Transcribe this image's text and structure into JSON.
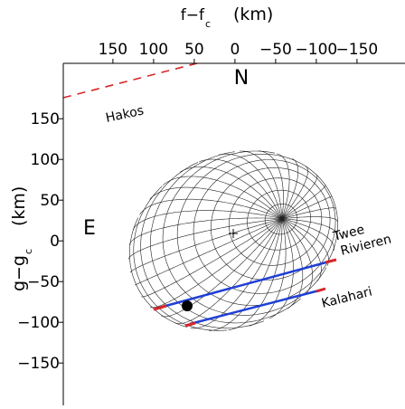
{
  "chart_data": {
    "type": "occultation",
    "title": "f−f",
    "title_sub": "c",
    "title_unit": "(km)",
    "ylabel": "g−g",
    "ylabel_sub": "c",
    "ylabel_unit": "(km)",
    "xlim": [
      211,
      -209
    ],
    "ylim": [
      -202,
      218
    ],
    "xticks": [
      150,
      100,
      50,
      0,
      {
        "value": -50,
        "label": "−50"
      },
      {
        "value": -100,
        "label": "−100"
      },
      {
        "value": -150,
        "label": "−150"
      }
    ],
    "yticks": [
      150,
      100,
      50,
      0,
      {
        "value": -50,
        "label": "−50"
      },
      {
        "value": -100,
        "label": "−100"
      },
      {
        "value": -150,
        "label": "−150"
      }
    ],
    "annotations": {
      "north": "N",
      "east": "E",
      "hakos": "Hakos",
      "twee1": "Twee",
      "twee2": "Rivieren",
      "kalahari": "Kalahari"
    }
  }
}
